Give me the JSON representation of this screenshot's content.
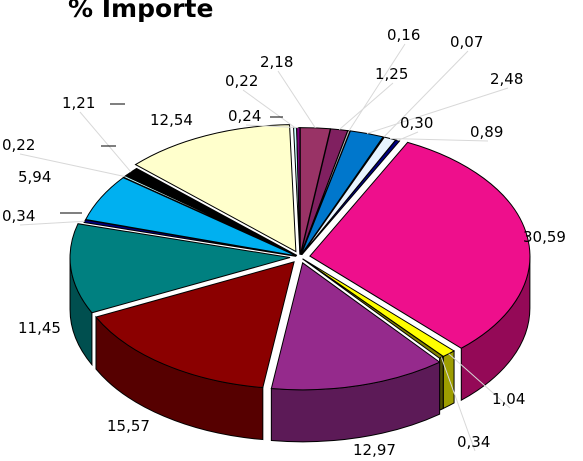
{
  "chart_data": {
    "type": "pie",
    "title": "% Importe",
    "values": [
      2.18,
      1.25,
      0.16,
      2.48,
      0.07,
      0.89,
      0.3,
      30.59,
      1.04,
      0.34,
      12.97,
      15.57,
      11.45,
      0.34,
      5.94,
      0.22,
      1.21,
      12.54,
      0.22,
      0.24
    ],
    "labels": [
      "2,18",
      "1,25",
      "0,16",
      "2,48",
      "0,07",
      "0,89",
      "0,30",
      "30,59",
      "1,04",
      "0,34",
      "12,97",
      "15,57",
      "11,45",
      "0,34",
      "5,94",
      "0,22",
      "1,21",
      "12,54",
      "0,22",
      "0,24"
    ],
    "colors": [
      "#993366",
      "#802060",
      "#c0c0c0",
      "#0077cc",
      "#ccddff",
      "#e8f4ff",
      "#000080",
      "#ee0f8c",
      "#ffff00",
      "#808000",
      "#952a8c",
      "#8b0000",
      "#008080",
      "#000080",
      "#00b0f0",
      "#ccffff",
      "#000000",
      "#ffffcc",
      "#ccffff",
      "#800080"
    ],
    "style": "3d-exploded-pie"
  }
}
